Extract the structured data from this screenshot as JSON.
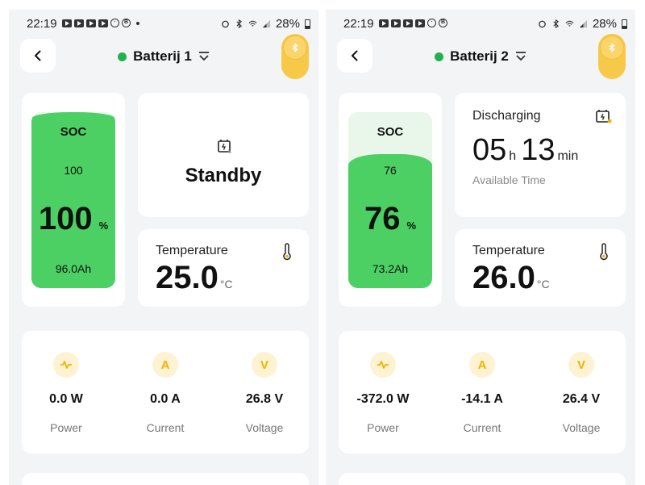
{
  "screens": [
    {
      "status": {
        "time": "22:19",
        "battery": "28%"
      },
      "header": {
        "title": "Batterij 1"
      },
      "soc": {
        "label": "SOC",
        "value": "100",
        "big": "100",
        "unit": "%",
        "capacity": "96.0Ah",
        "level": 1.0
      },
      "state": {
        "text": "Standby"
      },
      "temperature": {
        "label": "Temperature",
        "value": "25.0",
        "unit": "°C"
      },
      "metrics": [
        {
          "icon": "power-wave",
          "value": "0.0 W",
          "name": "Power"
        },
        {
          "icon": "A",
          "value": "0.0 A",
          "name": "Current"
        },
        {
          "icon": "V",
          "value": "26.8 V",
          "name": "Voltage"
        }
      ]
    },
    {
      "status": {
        "time": "22:19",
        "battery": "28%"
      },
      "header": {
        "title": "Batterij 2"
      },
      "soc": {
        "label": "SOC",
        "value": "76",
        "big": "76",
        "unit": "%",
        "capacity": "73.2Ah",
        "level": 0.76
      },
      "discharge": {
        "label": "Discharging",
        "hours": "05",
        "h_unit": "h",
        "minutes": "13",
        "m_unit": "min",
        "sub": "Available Time"
      },
      "temperature": {
        "label": "Temperature",
        "value": "26.0",
        "unit": "°C"
      },
      "metrics": [
        {
          "icon": "power-wave",
          "value": "-372.0 W",
          "name": "Power"
        },
        {
          "icon": "A",
          "value": "-14.1 A",
          "name": "Current"
        },
        {
          "icon": "V",
          "value": "26.4 V",
          "name": "Voltage"
        }
      ]
    }
  ],
  "colors": {
    "accent": "#f7c948",
    "soc_green": "#4cd064",
    "connected": "#22b14c"
  }
}
